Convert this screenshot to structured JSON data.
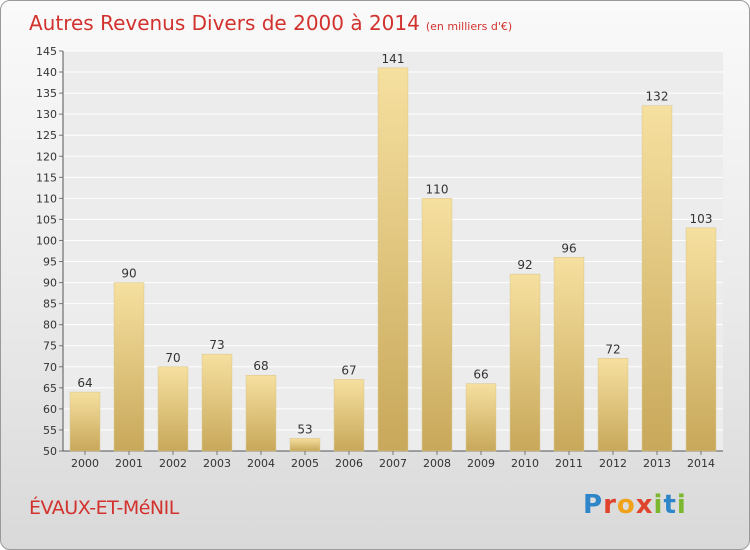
{
  "title": {
    "main": "Autres Revenus Divers de 2000 à 2014",
    "sub": "(en milliers d'€)"
  },
  "commune": "ÉVAUX-ET-MéNIL",
  "logo": "Proxiti",
  "colors": {
    "title": "#d2322d",
    "bar_light": "#f6e0a0",
    "bar_dark": "#c8a85a"
  },
  "chart_data": {
    "type": "bar",
    "categories": [
      "2000",
      "2001",
      "2002",
      "2003",
      "2004",
      "2005",
      "2006",
      "2007",
      "2008",
      "2009",
      "2010",
      "2011",
      "2012",
      "2013",
      "2014"
    ],
    "values": [
      64,
      90,
      70,
      73,
      68,
      53,
      67,
      141,
      110,
      66,
      92,
      96,
      72,
      132,
      103
    ],
    "ylim": [
      50,
      145
    ],
    "ytick_step": 5,
    "grid": true,
    "xlabel": "",
    "ylabel": ""
  }
}
